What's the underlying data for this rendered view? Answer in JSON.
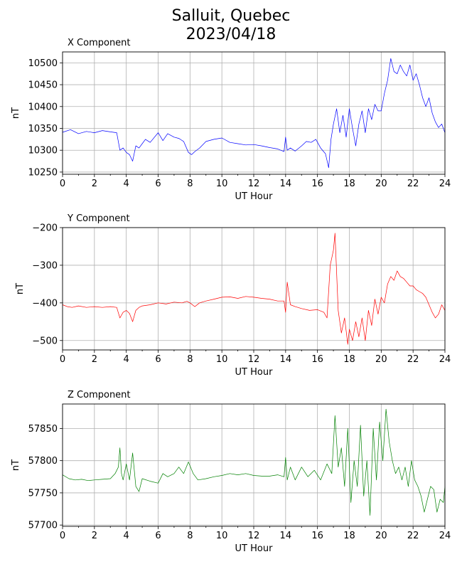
{
  "title_line1": "Salluit, Quebec",
  "title_line2": "2023/04/18",
  "chart_data": [
    {
      "type": "line",
      "title": "X Component",
      "xlabel": "UT Hour",
      "ylabel": "nT",
      "xlim": [
        0,
        24
      ],
      "ylim": [
        10245,
        10525
      ],
      "xticks": [
        0,
        2,
        4,
        6,
        8,
        10,
        12,
        14,
        16,
        18,
        20,
        22,
        24
      ],
      "yticks": [
        10250,
        10300,
        10350,
        10400,
        10450,
        10500
      ],
      "grid": true,
      "color": "#0000ff",
      "series": [
        {
          "x": [
            0,
            0.5,
            1.0,
            1.5,
            2.0,
            2.5,
            3.0,
            3.4,
            3.6,
            3.8,
            4.0,
            4.2,
            4.4,
            4.6,
            4.8,
            5.0,
            5.2,
            5.5,
            6.0,
            6.3,
            6.6,
            7.0,
            7.3,
            7.6,
            7.9,
            8.1,
            8.3,
            8.6,
            9.0,
            9.5,
            10.0,
            10.5,
            11.0,
            11.5,
            12.0,
            12.5,
            13.0,
            13.5,
            13.9,
            14.0,
            14.1,
            14.3,
            14.6,
            15.0,
            15.3,
            15.6,
            15.9,
            16.2,
            16.5,
            16.7,
            16.85,
            17.0,
            17.2,
            17.4,
            17.6,
            17.8,
            18.0,
            18.2,
            18.4,
            18.6,
            18.8,
            19.0,
            19.2,
            19.4,
            19.6,
            19.8,
            20.0,
            20.2,
            20.4,
            20.6,
            20.8,
            21.0,
            21.2,
            21.4,
            21.6,
            21.8,
            22.0,
            22.2,
            22.4,
            22.6,
            22.8,
            23.0,
            23.2,
            23.4,
            23.6,
            23.8,
            24.0
          ],
          "y": [
            10341,
            10347,
            10338,
            10343,
            10340,
            10345,
            10342,
            10340,
            10300,
            10305,
            10295,
            10290,
            10275,
            10310,
            10305,
            10315,
            10325,
            10318,
            10340,
            10322,
            10338,
            10330,
            10327,
            10320,
            10295,
            10290,
            10297,
            10305,
            10320,
            10325,
            10328,
            10318,
            10315,
            10312,
            10313,
            10310,
            10306,
            10303,
            10297,
            10330,
            10300,
            10305,
            10298,
            10310,
            10320,
            10318,
            10325,
            10305,
            10292,
            10260,
            10325,
            10360,
            10395,
            10340,
            10380,
            10330,
            10395,
            10350,
            10310,
            10360,
            10390,
            10340,
            10395,
            10370,
            10405,
            10390,
            10390,
            10430,
            10460,
            10510,
            10480,
            10475,
            10495,
            10480,
            10470,
            10495,
            10460,
            10475,
            10450,
            10420,
            10400,
            10420,
            10385,
            10365,
            10352,
            10360,
            10340
          ]
        }
      ]
    },
    {
      "type": "line",
      "title": "Y Component",
      "xlabel": "UT Hour",
      "ylabel": "nT",
      "xlim": [
        0,
        24
      ],
      "ylim": [
        -525,
        -200
      ],
      "xticks": [
        0,
        2,
        4,
        6,
        8,
        10,
        12,
        14,
        16,
        18,
        20,
        22,
        24
      ],
      "yticks": [
        -500,
        -400,
        -300,
        -200
      ],
      "grid": true,
      "color": "#ff0000",
      "series": [
        {
          "x": [
            0,
            0.3,
            0.6,
            1.0,
            1.5,
            2.0,
            2.5,
            3.0,
            3.4,
            3.6,
            3.8,
            4.0,
            4.2,
            4.4,
            4.6,
            4.8,
            5.0,
            5.5,
            6.0,
            6.5,
            7.0,
            7.5,
            7.8,
            8.0,
            8.3,
            8.6,
            9.0,
            9.5,
            10.0,
            10.5,
            11.0,
            11.5,
            12.0,
            12.5,
            13.0,
            13.5,
            13.9,
            14.0,
            14.1,
            14.3,
            14.6,
            15.0,
            15.5,
            16.0,
            16.4,
            16.6,
            16.8,
            17.0,
            17.1,
            17.3,
            17.5,
            17.7,
            17.9,
            18.0,
            18.2,
            18.4,
            18.6,
            18.8,
            19.0,
            19.2,
            19.4,
            19.6,
            19.8,
            20.0,
            20.2,
            20.4,
            20.6,
            20.8,
            21.0,
            21.2,
            21.4,
            21.6,
            21.8,
            22.0,
            22.2,
            22.4,
            22.6,
            22.8,
            23.0,
            23.2,
            23.4,
            23.6,
            23.8,
            24.0
          ],
          "y": [
            -405,
            -410,
            -412,
            -408,
            -412,
            -410,
            -412,
            -410,
            -412,
            -440,
            -425,
            -420,
            -428,
            -450,
            -420,
            -412,
            -408,
            -405,
            -400,
            -403,
            -398,
            -400,
            -396,
            -400,
            -410,
            -400,
            -395,
            -390,
            -385,
            -384,
            -388,
            -383,
            -385,
            -388,
            -390,
            -395,
            -395,
            -425,
            -345,
            -405,
            -410,
            -415,
            -420,
            -418,
            -425,
            -440,
            -300,
            -260,
            -215,
            -420,
            -480,
            -440,
            -510,
            -470,
            -500,
            -450,
            -490,
            -440,
            -500,
            -420,
            -460,
            -390,
            -430,
            -385,
            -400,
            -350,
            -330,
            -340,
            -315,
            -330,
            -335,
            -345,
            -355,
            -355,
            -365,
            -370,
            -375,
            -385,
            -405,
            -425,
            -440,
            -430,
            -405,
            -420
          ]
        }
      ]
    },
    {
      "type": "line",
      "title": "Z Component",
      "xlabel": "UT Hour",
      "ylabel": "nT",
      "xlim": [
        0,
        24
      ],
      "ylim": [
        57698,
        57888
      ],
      "xticks": [
        0,
        2,
        4,
        6,
        8,
        10,
        12,
        14,
        16,
        18,
        20,
        22,
        24
      ],
      "yticks": [
        57700,
        57750,
        57800,
        57850
      ],
      "grid": true,
      "color": "#008000",
      "series": [
        {
          "x": [
            0,
            0.4,
            0.8,
            1.2,
            1.6,
            2.0,
            2.5,
            3.0,
            3.3,
            3.5,
            3.6,
            3.7,
            3.8,
            4.0,
            4.2,
            4.4,
            4.6,
            4.8,
            5.0,
            5.5,
            6.0,
            6.3,
            6.6,
            7.0,
            7.3,
            7.6,
            7.9,
            8.2,
            8.5,
            9.0,
            9.5,
            10.0,
            10.5,
            11.0,
            11.5,
            12.0,
            12.5,
            13.0,
            13.5,
            13.9,
            14.0,
            14.1,
            14.3,
            14.6,
            15.0,
            15.4,
            15.8,
            16.2,
            16.6,
            16.9,
            17.1,
            17.3,
            17.5,
            17.7,
            17.9,
            18.1,
            18.3,
            18.5,
            18.7,
            18.9,
            19.1,
            19.3,
            19.5,
            19.7,
            19.9,
            20.1,
            20.3,
            20.5,
            20.7,
            20.9,
            21.1,
            21.3,
            21.5,
            21.7,
            21.9,
            22.1,
            22.3,
            22.5,
            22.7,
            22.9,
            23.1,
            23.3,
            23.5,
            23.7,
            23.9,
            24.0
          ],
          "y": [
            57778,
            57772,
            57770,
            57771,
            57769,
            57770,
            57771,
            57772,
            57780,
            57790,
            57820,
            57780,
            57770,
            57795,
            57770,
            57812,
            57760,
            57752,
            57772,
            57768,
            57765,
            57780,
            57775,
            57780,
            57790,
            57780,
            57798,
            57780,
            57770,
            57772,
            57775,
            57777,
            57780,
            57778,
            57780,
            57777,
            57776,
            57776,
            57778,
            57775,
            57805,
            57770,
            57790,
            57770,
            57790,
            57775,
            57785,
            57770,
            57795,
            57780,
            57870,
            57790,
            57820,
            57760,
            57850,
            57735,
            57800,
            57760,
            57855,
            57745,
            57800,
            57715,
            57850,
            57770,
            57860,
            57800,
            57880,
            57830,
            57800,
            57780,
            57790,
            57770,
            57790,
            57760,
            57800,
            57770,
            57760,
            57745,
            57720,
            57740,
            57760,
            57755,
            57720,
            57740,
            57735,
            57760
          ]
        }
      ]
    }
  ]
}
